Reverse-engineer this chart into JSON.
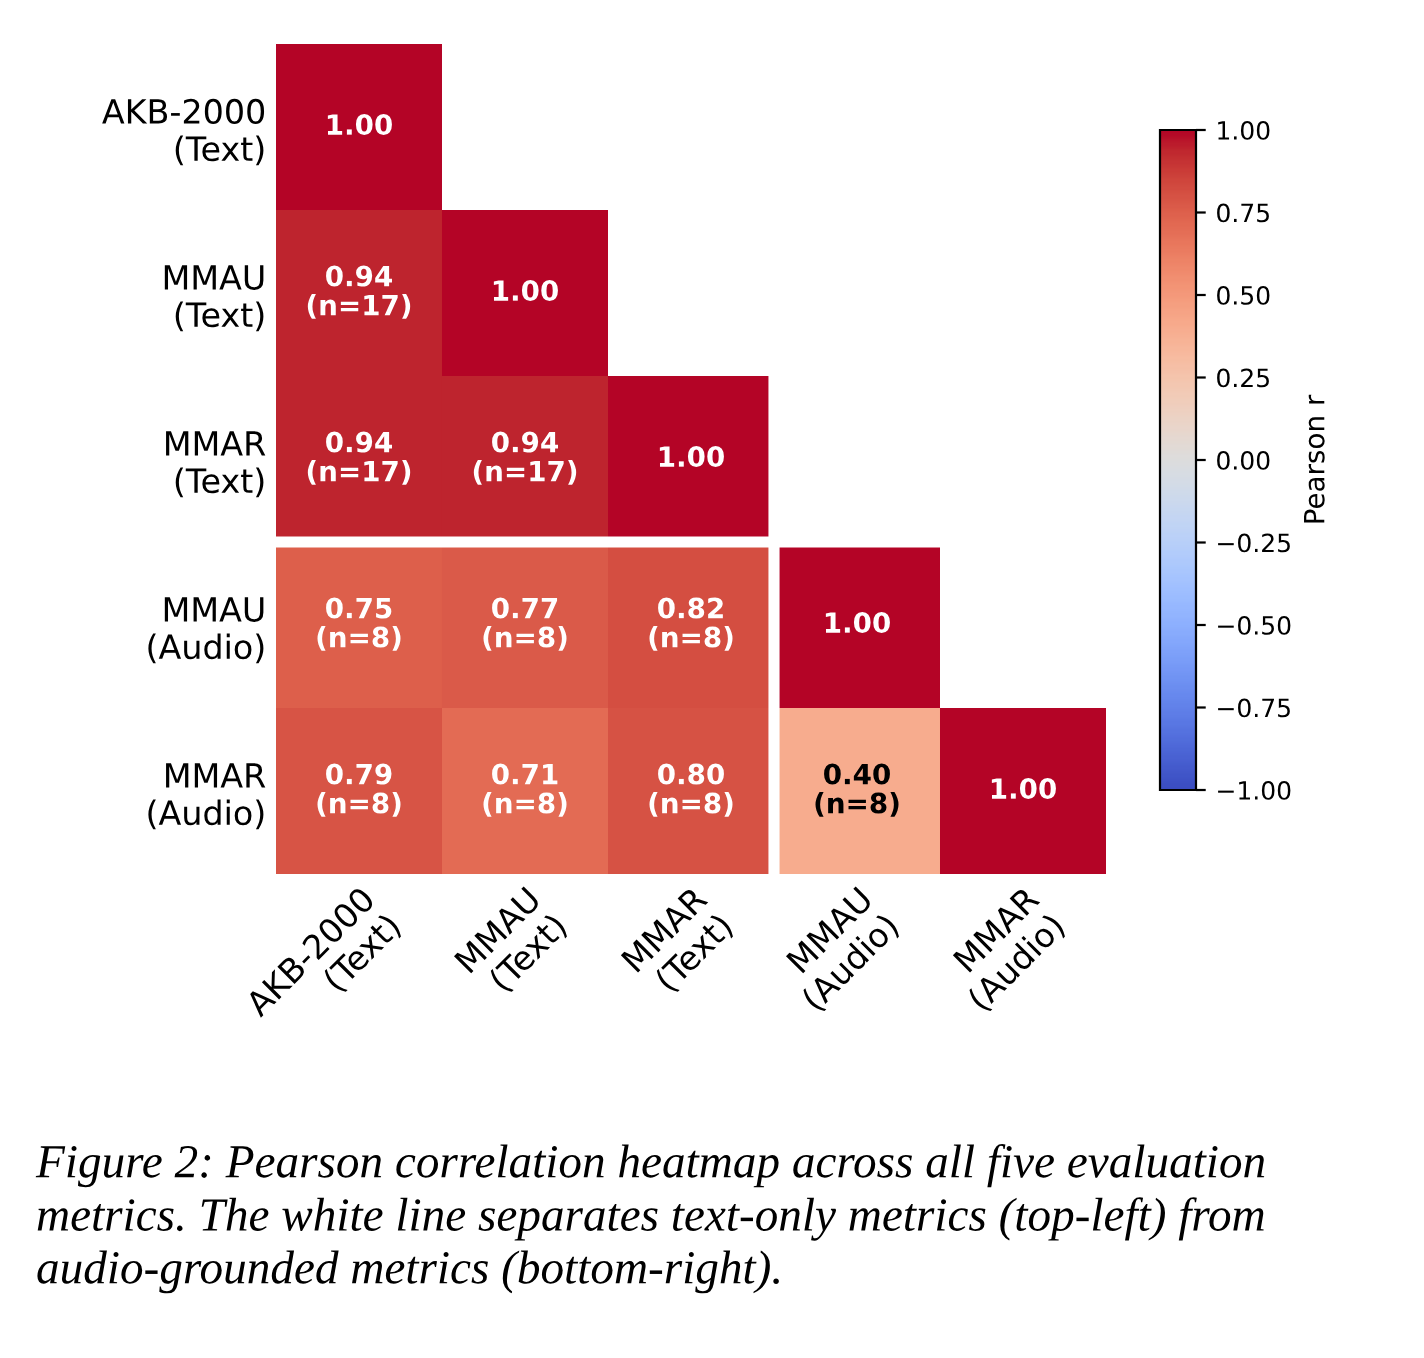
{
  "chart_data": {
    "type": "heatmap",
    "categories": [
      "AKB-2000\n(Text)",
      "MMAU\n(Text)",
      "MMAR\n(Text)",
      "MMAU\n(Audio)",
      "MMAR\n(Audio)"
    ],
    "y_categories": [
      "AKB-2000\n(Text)",
      "MMAU\n(Text)",
      "MMAR\n(Text)",
      "MMAU\n(Audio)",
      "MMAR\n(Audio)"
    ],
    "cells": [
      [
        1.0,
        null,
        null,
        null,
        null
      ],
      [
        0.94,
        1.0,
        null,
        null,
        null
      ],
      [
        0.94,
        0.94,
        1.0,
        null,
        null
      ],
      [
        0.75,
        0.77,
        0.82,
        1.0,
        null
      ],
      [
        0.79,
        0.71,
        0.8,
        0.4,
        1.0
      ]
    ],
    "cell_labels": [
      [
        "1.00",
        null,
        null,
        null,
        null
      ],
      [
        "0.94\n(n=17)",
        "1.00",
        null,
        null,
        null
      ],
      [
        "0.94\n(n=17)",
        "0.94\n(n=17)",
        "1.00",
        null,
        null
      ],
      [
        "0.75\n(n=8)",
        "0.77\n(n=8)",
        "0.82\n(n=8)",
        "1.00",
        null
      ],
      [
        "0.79\n(n=8)",
        "0.71\n(n=8)",
        "0.80\n(n=8)",
        "0.40\n(n=8)",
        "1.00"
      ]
    ],
    "clabel": "Pearson r",
    "clim": [
      -1,
      1
    ],
    "cticks": [
      {
        "value": 1,
        "label": "1.00"
      },
      {
        "value": 0.75,
        "label": "0.75"
      },
      {
        "value": 0.5,
        "label": "0.50"
      },
      {
        "value": 0.25,
        "label": "0.25"
      },
      {
        "value": 0,
        "label": "0.00"
      },
      {
        "value": -0.25,
        "label": "−0.25"
      },
      {
        "value": -0.5,
        "label": "−0.50"
      },
      {
        "value": -0.75,
        "label": "−0.75"
      },
      {
        "value": -1,
        "label": "−1.00"
      }
    ],
    "annotations": [
      "Figure 2: Pearson correlation heatmap across all five evaluation metrics. The white line separates text-only metrics (top-left) from audio-grounded metrics (bottom-right)."
    ]
  }
}
